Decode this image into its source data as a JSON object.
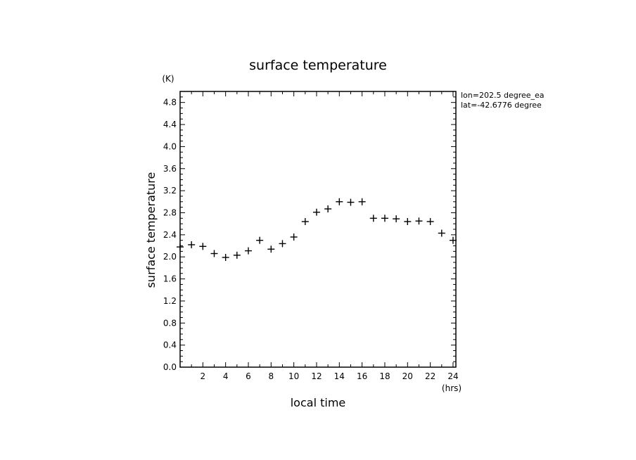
{
  "chart_data": {
    "type": "scatter",
    "title": "surface temperature",
    "xlabel": "local time",
    "ylabel": "surface temperature",
    "x_unit": "(hrs)",
    "y_unit": "(K)",
    "xlim": [
      0,
      24.25
    ],
    "ylim": [
      0,
      5.0
    ],
    "x_ticks": [
      2,
      4,
      6,
      8,
      10,
      12,
      14,
      16,
      18,
      20,
      22,
      24
    ],
    "y_ticks": [
      0.0,
      0.4,
      0.8,
      1.2,
      1.6,
      2.0,
      2.4,
      2.8,
      3.2,
      3.6,
      4.0,
      4.4,
      4.8
    ],
    "y_tick_labels": [
      "0.0",
      "0.4",
      "0.8",
      "1.2",
      "1.6",
      "2.0",
      "2.4",
      "2.8",
      "3.2",
      "3.6",
      "4.0",
      "4.4",
      "4.8"
    ],
    "marker": "+",
    "annotations": [
      "lon=202.5 degree_ea",
      "lat=-42.6776 degree"
    ],
    "x": [
      0.0,
      1.0,
      2.0,
      3.0,
      4.0,
      5.0,
      6.0,
      7.0,
      8.0,
      9.0,
      10.0,
      11.0,
      12.0,
      13.0,
      14.0,
      15.0,
      16.0,
      17.0,
      18.0,
      19.0,
      20.0,
      21.0,
      22.0,
      23.0,
      24.0
    ],
    "values": [
      2.18,
      2.22,
      2.19,
      2.06,
      1.99,
      2.03,
      2.11,
      2.3,
      2.14,
      2.24,
      2.36,
      2.64,
      2.81,
      2.87,
      3.0,
      2.99,
      3.0,
      2.7,
      2.7,
      2.69,
      2.64,
      2.65,
      2.64,
      2.43,
      2.3
    ]
  },
  "colors": {
    "axis": "#000000",
    "marker": "#000000",
    "background": "#ffffff"
  }
}
